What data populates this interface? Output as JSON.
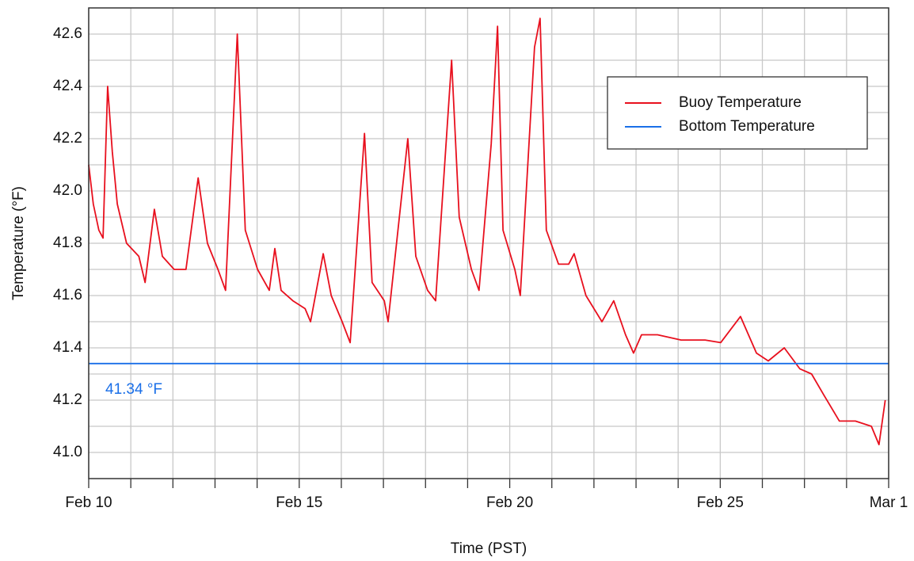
{
  "chart_data": {
    "type": "line",
    "x_label": "Time (PST)",
    "y_label": "Temperature (°F)",
    "xlim": [
      0,
      19
    ],
    "xticks": [
      {
        "value": 0,
        "label": "Feb 10"
      },
      {
        "value": 1,
        "label": null
      },
      {
        "value": 2,
        "label": null
      },
      {
        "value": 3,
        "label": null
      },
      {
        "value": 4,
        "label": null
      },
      {
        "value": 5,
        "label": "Feb 15"
      },
      {
        "value": 6,
        "label": null
      },
      {
        "value": 7,
        "label": null
      },
      {
        "value": 8,
        "label": null
      },
      {
        "value": 9,
        "label": null
      },
      {
        "value": 10,
        "label": "Feb 20"
      },
      {
        "value": 11,
        "label": null
      },
      {
        "value": 12,
        "label": null
      },
      {
        "value": 13,
        "label": null
      },
      {
        "value": 14,
        "label": null
      },
      {
        "value": 15,
        "label": "Feb 25"
      },
      {
        "value": 16,
        "label": null
      },
      {
        "value": 17,
        "label": null
      },
      {
        "value": 18,
        "label": null
      },
      {
        "value": 19,
        "label": "Mar 1"
      }
    ],
    "ylim": [
      40.9,
      42.7
    ],
    "yticks": [
      {
        "value": 41.0,
        "label": "41.0"
      },
      {
        "value": 41.1,
        "label": null
      },
      {
        "value": 41.2,
        "label": "41.2"
      },
      {
        "value": 41.3,
        "label": null
      },
      {
        "value": 41.4,
        "label": "41.4"
      },
      {
        "value": 41.5,
        "label": null
      },
      {
        "value": 41.6,
        "label": "41.6"
      },
      {
        "value": 41.7,
        "label": null
      },
      {
        "value": 41.8,
        "label": "41.8"
      },
      {
        "value": 41.9,
        "label": null
      },
      {
        "value": 42.0,
        "label": "42.0"
      },
      {
        "value": 42.1,
        "label": null
      },
      {
        "value": 42.2,
        "label": "42.2"
      },
      {
        "value": 42.3,
        "label": null
      },
      {
        "value": 42.4,
        "label": "42.4"
      },
      {
        "value": 42.5,
        "label": null
      },
      {
        "value": 42.6,
        "label": "42.6"
      }
    ],
    "grid": true,
    "legend": "upper right",
    "series": [
      {
        "name": "Buoy Temperature",
        "color": "#e8101e",
        "x": [
          0,
          0.11,
          0.24,
          0.34,
          0.45,
          0.56,
          0.68,
          0.9,
          1.19,
          1.34,
          1.56,
          1.75,
          2.03,
          2.31,
          2.6,
          2.82,
          3.07,
          3.25,
          3.53,
          3.72,
          4.01,
          4.29,
          4.42,
          4.57,
          4.85,
          5.14,
          5.27,
          5.57,
          5.76,
          6.02,
          6.21,
          6.55,
          6.73,
          7.02,
          7.11,
          7.58,
          7.77,
          8.05,
          8.24,
          8.62,
          8.8,
          9.09,
          9.27,
          9.56,
          9.71,
          9.84,
          10.12,
          10.25,
          10.59,
          10.72,
          10.87,
          11.16,
          11.4,
          11.53,
          11.81,
          12.19,
          12.47,
          12.75,
          12.94,
          13.13,
          13.51,
          14.07,
          14.64,
          15.01,
          15.48,
          15.86,
          16.14,
          16.52,
          16.89,
          17.17,
          17.46,
          17.83,
          18.21,
          18.59,
          18.77,
          18.92
        ],
        "values": [
          42.1,
          41.95,
          41.85,
          41.82,
          42.4,
          42.15,
          41.95,
          41.8,
          41.75,
          41.65,
          41.93,
          41.75,
          41.7,
          41.7,
          42.05,
          41.8,
          41.7,
          41.62,
          42.6,
          41.85,
          41.7,
          41.62,
          41.78,
          41.62,
          41.58,
          41.55,
          41.5,
          41.76,
          41.6,
          41.5,
          41.42,
          42.22,
          41.65,
          41.58,
          41.5,
          42.2,
          41.75,
          41.62,
          41.58,
          42.5,
          41.9,
          41.7,
          41.62,
          42.18,
          42.63,
          41.85,
          41.7,
          41.6,
          42.55,
          42.66,
          41.85,
          41.72,
          41.72,
          41.76,
          41.6,
          41.5,
          41.58,
          41.45,
          41.38,
          41.45,
          41.45,
          41.43,
          41.43,
          41.42,
          41.52,
          41.38,
          41.35,
          41.4,
          41.32,
          41.3,
          41.22,
          41.12,
          41.12,
          41.1,
          41.03,
          41.2
        ]
      },
      {
        "name": "Bottom Temperature",
        "color": "#1a6fe8",
        "x": [
          0,
          19
        ],
        "values": [
          41.34,
          41.34
        ]
      }
    ],
    "annotation": "41.34 °F"
  }
}
